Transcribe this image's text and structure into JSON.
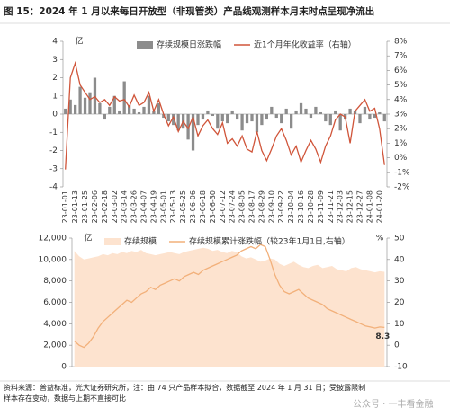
{
  "title": "图 15：2024 年 1 月以来每日开放型（非现管类）产品线观测样本月末时点呈现净流出",
  "source": "资料来源：普益标准，光大证券研究所，注：由 74 只产品样本拟合，数据截至 2024 年 1 月 31 日；受披露限制样本存在变动，数据与上期不直接可比",
  "watermark": "公众号 · 一丰看金融",
  "chart_data": [
    {
      "type": "bar",
      "y_unit": "亿",
      "categories": [
        "23-01-01",
        null,
        "23-01-13",
        null,
        "23-01-25",
        null,
        "23-02-06",
        null,
        "23-02-18",
        null,
        "23-03-02",
        null,
        "23-03-14",
        null,
        "23-03-26",
        null,
        "23-04-07",
        null,
        "23-04-19",
        null,
        "23-05-01",
        null,
        "23-05-13",
        null,
        "23-05-25",
        null,
        "23-06-06",
        null,
        "23-06-18",
        null,
        "23-06-30",
        null,
        "23-07-12",
        null,
        "23-07-24",
        null,
        "23-08-05",
        null,
        "23-08-17",
        null,
        "23-08-29",
        null,
        "23-09-10",
        null,
        "23-09-22",
        null,
        "23-10-04",
        null,
        "23-10-16",
        null,
        "23-10-28",
        null,
        "23-11-09",
        null,
        "23-11-21",
        null,
        "23-12-03",
        null,
        "23-12-15",
        null,
        "23-12-27",
        null,
        "24-01-08",
        null,
        "24-01-20",
        null
      ],
      "series": [
        {
          "name": "存续规模日涨跌幅",
          "type": "bar",
          "color": "#8c8c8c",
          "values": [
            0.3,
            0.8,
            0.5,
            1.5,
            0.9,
            1.2,
            2.0,
            0.6,
            -0.3,
            0.4,
            1.0,
            0.2,
            1.8,
            0.5,
            0.3,
            0.1,
            0.4,
            1.0,
            0.2,
            0.6,
            -0.2,
            -0.4,
            -0.6,
            -0.9,
            -0.8,
            -1.4,
            -2.0,
            -0.6,
            -0.3,
            0.2,
            -0.1,
            -0.8,
            -0.4,
            -0.5,
            0.2,
            -0.3,
            -0.9,
            -0.5,
            -0.4,
            -1.0,
            -0.6,
            -0.3,
            0.4,
            -0.2,
            -0.5,
            0.3,
            -0.8,
            0.2,
            0.6,
            0.3,
            -0.2,
            0.4,
            0.1,
            -0.4,
            -0.6,
            0.2,
            -0.9,
            -0.3,
            0.3,
            0.2,
            -0.5,
            0.4,
            -0.3,
            -0.2,
            0.1,
            -0.4
          ]
        },
        {
          "name": "近1个月年化收益率（右轴）",
          "type": "line",
          "axis": "y2",
          "color": "#d0553a",
          "values": [
            -0.8,
            5.5,
            6.5,
            5.0,
            4.5,
            4.0,
            4.2,
            3.8,
            4.0,
            3.6,
            4.2,
            3.9,
            4.0,
            3.5,
            4.3,
            3.6,
            3.8,
            4.5,
            3.2,
            4.0,
            3.0,
            2.2,
            2.8,
            1.8,
            2.5,
            2.0,
            2.8,
            1.5,
            2.2,
            2.6,
            2.0,
            1.6,
            2.4,
            1.0,
            1.3,
            0.8,
            1.5,
            0.6,
            0.4,
            1.8,
            0.5,
            -0.2,
            0.6,
            1.5,
            2.0,
            1.2,
            0.2,
            0.8,
            -0.3,
            0.5,
            1.2,
            0.6,
            -0.3,
            0.8,
            1.5,
            2.6,
            3.0,
            2.8,
            1.0,
            3.2,
            3.6,
            4.0,
            3.2,
            3.4,
            2.0,
            -0.5
          ]
        }
      ],
      "ylim": [
        -4,
        4
      ],
      "yticks": [
        -4,
        -3,
        -2,
        -1,
        0,
        1,
        2,
        3,
        4
      ],
      "y2lim": [
        -2,
        8
      ],
      "y2ticks": [
        {
          "value": -2,
          "label": "-2%"
        },
        {
          "value": -1,
          "label": "-1%"
        },
        {
          "value": 0,
          "label": "0%"
        },
        {
          "value": 1,
          "label": "1%"
        },
        {
          "value": 2,
          "label": "2%"
        },
        {
          "value": 3,
          "label": "3%"
        },
        {
          "value": 4,
          "label": "4%"
        },
        {
          "value": 5,
          "label": "5%"
        },
        {
          "value": 6,
          "label": "6%"
        },
        {
          "value": 7,
          "label": "7%"
        },
        {
          "value": 8,
          "label": "8%"
        }
      ]
    },
    {
      "type": "area",
      "y_unit": "亿",
      "y2_unit": "%",
      "series": [
        {
          "name": "存续规模",
          "type": "area",
          "color": "#fde3cf",
          "values": [
            10800,
            10300,
            10000,
            10100,
            10200,
            10300,
            10500,
            10400,
            10600,
            10500,
            10700,
            10600,
            10800,
            10700,
            10900,
            10600,
            10500,
            10400,
            10500,
            10600,
            10700,
            10600,
            10500,
            10700,
            10800,
            10900,
            11000,
            11100,
            11000,
            10800,
            10900,
            10700,
            10600,
            10800,
            10700,
            10300,
            10100,
            10200,
            10000,
            9800,
            9900,
            10100,
            10000,
            9600,
            9400,
            9600,
            9800,
            9500,
            9300,
            9200,
            9400,
            9500,
            9200,
            9300,
            9400,
            9100,
            9000,
            8900,
            9200,
            9300,
            9100,
            9000,
            8900,
            8800,
            8900,
            8850
          ]
        },
        {
          "name": "存续规模累计涨跌幅（较23年1月1日,右轴）",
          "type": "line",
          "axis": "y2",
          "color": "#f2b07a",
          "label_last": true,
          "values": [
            2,
            0,
            -1,
            1,
            4,
            8,
            11,
            13,
            15,
            17,
            19,
            21,
            20,
            22,
            24,
            25,
            27,
            26,
            28,
            29,
            30,
            31,
            30,
            32,
            33,
            34,
            33,
            35,
            36,
            37,
            38,
            39,
            40,
            41,
            42,
            44,
            45,
            46,
            45,
            47,
            46,
            40,
            33,
            28,
            25,
            24,
            25,
            26,
            24,
            22,
            21,
            20,
            19,
            17,
            16,
            15,
            14,
            13,
            12,
            11,
            10,
            9,
            8.5,
            8,
            8.5,
            8.3
          ]
        }
      ],
      "ylim": [
        0,
        12000
      ],
      "yticks": [
        0,
        {
          "value": 2000,
          "label": "2,000"
        },
        {
          "value": 4000,
          "label": "4,000"
        },
        {
          "value": 6000,
          "label": "6,000"
        },
        {
          "value": 8000,
          "label": "8,000"
        },
        {
          "value": 10000,
          "label": "10,000"
        },
        {
          "value": 12000,
          "label": "12,000"
        }
      ],
      "y2lim": [
        -10,
        50
      ],
      "y2ticks": [
        -10,
        0,
        10,
        20,
        30,
        40,
        50
      ]
    }
  ]
}
